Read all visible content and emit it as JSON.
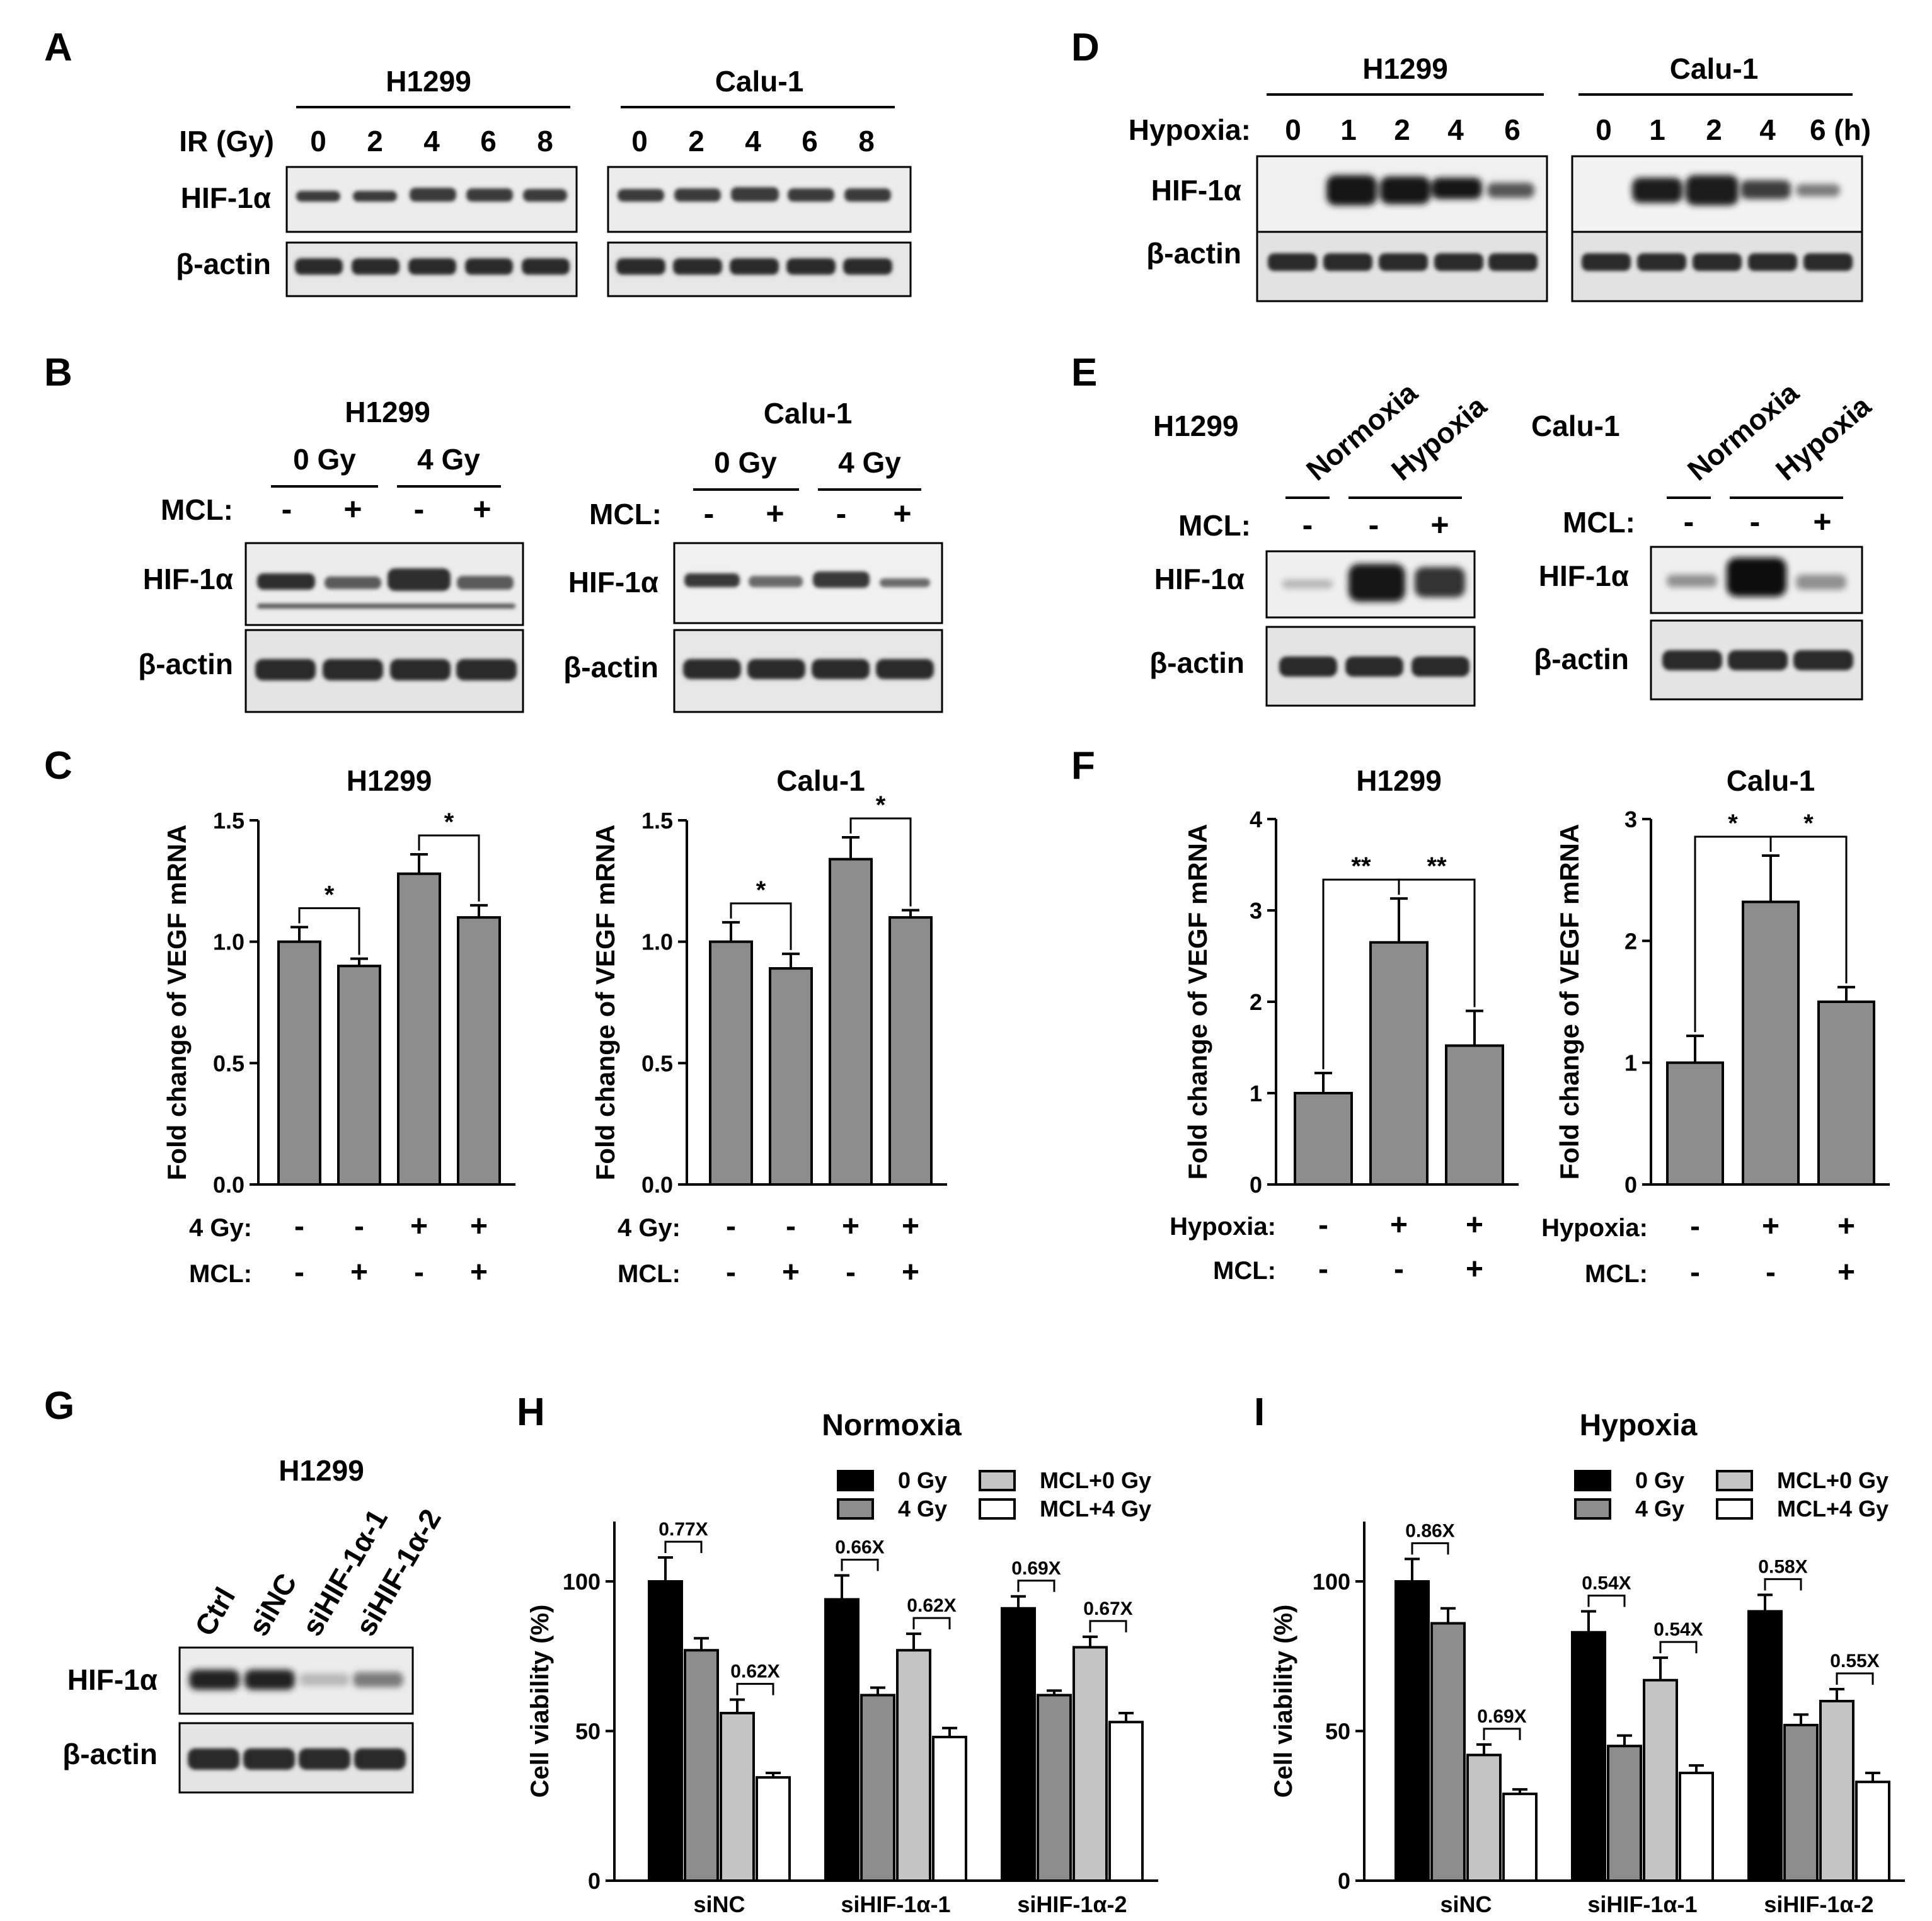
{
  "panel_letters": [
    "A",
    "B",
    "C",
    "D",
    "E",
    "F",
    "G",
    "H",
    "I"
  ],
  "blot_rows": {
    "hif": "HIF-1α",
    "actin": "β-actin"
  },
  "panelA": {
    "header_label": "IR (Gy)",
    "groups": [
      {
        "title": "H1299",
        "lanes": [
          "0",
          "2",
          "4",
          "6",
          "8"
        ]
      },
      {
        "title": "Calu-1",
        "lanes": [
          "0",
          "2",
          "4",
          "6",
          "8"
        ]
      }
    ]
  },
  "panelB": {
    "mcl_label": "MCL:",
    "groups": [
      {
        "title": "H1299",
        "doses": [
          "0 Gy",
          "4 Gy"
        ],
        "mcl": [
          "-",
          "+",
          "-",
          "+"
        ]
      },
      {
        "title": "Calu-1",
        "doses": [
          "0 Gy",
          "4 Gy"
        ],
        "mcl": [
          "-",
          "+",
          "-",
          "+"
        ]
      }
    ]
  },
  "panelD": {
    "header_label": "Hypoxia:",
    "groups": [
      {
        "title": "H1299",
        "lanes": [
          "0",
          "1",
          "2",
          "4",
          "6"
        ]
      },
      {
        "title": "Calu-1",
        "lanes": [
          "0",
          "1",
          "2",
          "4",
          "6 (h)"
        ]
      }
    ]
  },
  "panelE": {
    "mcl_label": "MCL:",
    "groups": [
      {
        "title": "H1299",
        "conditions": [
          "Normoxia",
          "Hypoxia"
        ],
        "mcl": [
          "-",
          "-",
          "+"
        ]
      },
      {
        "title": "Calu-1",
        "conditions": [
          "Normoxia",
          "Hypoxia"
        ],
        "mcl": [
          "-",
          "-",
          "+"
        ]
      }
    ]
  },
  "panelG": {
    "title": "H1299",
    "lanes": [
      "Ctrl",
      "siNC",
      "siHIF-1α-1",
      "siHIF-1α-2"
    ]
  },
  "chart_data": [
    {
      "id": "C1",
      "type": "bar",
      "title": "H1299",
      "ylabel": "Fold change of VEGF mRNA",
      "ylim": [
        0,
        1.5
      ],
      "yticks": [
        "0.0",
        "0.5",
        "1.0",
        "1.5"
      ],
      "values": [
        1.0,
        0.9,
        1.28,
        1.1
      ],
      "errors": [
        0.06,
        0.03,
        0.08,
        0.05
      ],
      "conditions": [
        {
          "label": "4 Gy:",
          "signs": [
            "-",
            "-",
            "+",
            "+"
          ]
        },
        {
          "label": "MCL:",
          "signs": [
            "-",
            "+",
            "-",
            "+"
          ]
        }
      ],
      "sig": [
        {
          "from": 0,
          "to": 1,
          "label": "*"
        },
        {
          "from": 2,
          "to": 3,
          "label": "*"
        }
      ]
    },
    {
      "id": "C2",
      "type": "bar",
      "title": "Calu-1",
      "ylabel": "Fold change of VEGF mRNA",
      "ylim": [
        0,
        1.5
      ],
      "yticks": [
        "0.0",
        "0.5",
        "1.0",
        "1.5"
      ],
      "values": [
        1.0,
        0.89,
        1.34,
        1.1
      ],
      "errors": [
        0.08,
        0.06,
        0.09,
        0.03
      ],
      "conditions": [
        {
          "label": "4 Gy:",
          "signs": [
            "-",
            "-",
            "+",
            "+"
          ]
        },
        {
          "label": "MCL:",
          "signs": [
            "-",
            "+",
            "-",
            "+"
          ]
        }
      ],
      "sig": [
        {
          "from": 0,
          "to": 1,
          "label": "*"
        },
        {
          "from": 2,
          "to": 3,
          "label": "*"
        }
      ]
    },
    {
      "id": "F1",
      "type": "bar",
      "title": "H1299",
      "ylabel": "Fold change of VEGF mRNA",
      "ylim": [
        0,
        4
      ],
      "yticks": [
        "0",
        "1",
        "2",
        "3",
        "4"
      ],
      "values": [
        1.0,
        2.65,
        1.52
      ],
      "errors": [
        0.22,
        0.48,
        0.38
      ],
      "conditions": [
        {
          "label": "Hypoxia:",
          "signs": [
            "-",
            "+",
            "+"
          ]
        },
        {
          "label": "MCL:",
          "signs": [
            "-",
            "-",
            "+"
          ]
        }
      ],
      "sig": [
        {
          "from": 0,
          "to": 1,
          "label": "**"
        },
        {
          "from": 1,
          "to": 2,
          "label": "**"
        }
      ]
    },
    {
      "id": "F2",
      "type": "bar",
      "title": "Calu-1",
      "ylabel": "Fold change of VEGF mRNA",
      "ylim": [
        0,
        3
      ],
      "yticks": [
        "0",
        "1",
        "2",
        "3"
      ],
      "values": [
        1.0,
        2.32,
        1.5
      ],
      "errors": [
        0.22,
        0.38,
        0.12
      ],
      "conditions": [
        {
          "label": "Hypoxia:",
          "signs": [
            "-",
            "+",
            "+"
          ]
        },
        {
          "label": "MCL:",
          "signs": [
            "-",
            "-",
            "+"
          ]
        }
      ],
      "sig": [
        {
          "from": 0,
          "to": 1,
          "label": "*"
        },
        {
          "from": 1,
          "to": 2,
          "label": "*"
        }
      ]
    },
    {
      "id": "H",
      "type": "bar",
      "title": "Normoxia",
      "ylabel": "Cell viability (%)",
      "ylim": [
        0,
        120
      ],
      "yticks": [
        "0",
        "50",
        "100"
      ],
      "ytick_values": [
        0,
        50,
        100
      ],
      "categories": [
        "siNC",
        "siHIF-1α-1",
        "siHIF-1α-2"
      ],
      "series": [
        {
          "name": "0 Gy",
          "color": "#000000",
          "values": [
            100,
            94,
            91
          ],
          "errors": [
            8,
            8,
            4
          ]
        },
        {
          "name": "4 Gy",
          "color": "#8c8c8c",
          "values": [
            77,
            62,
            62
          ],
          "errors": [
            4,
            2.5,
            1.5
          ]
        },
        {
          "name": "MCL+0 Gy",
          "color": "#c4c4c4",
          "values": [
            56,
            77,
            78
          ],
          "errors": [
            4.5,
            5.5,
            3.5
          ]
        },
        {
          "name": "MCL+4 Gy",
          "color": "#ffffff",
          "values": [
            34.5,
            48,
            53
          ],
          "errors": [
            1.5,
            3,
            3
          ]
        }
      ],
      "annotations": [
        {
          "cat": 0,
          "pair": [
            0,
            1
          ],
          "label": "0.77X"
        },
        {
          "cat": 0,
          "pair": [
            2,
            3
          ],
          "label": "0.62X"
        },
        {
          "cat": 1,
          "pair": [
            0,
            1
          ],
          "label": "0.66X"
        },
        {
          "cat": 1,
          "pair": [
            2,
            3
          ],
          "label": "0.62X"
        },
        {
          "cat": 2,
          "pair": [
            0,
            1
          ],
          "label": "0.69X"
        },
        {
          "cat": 2,
          "pair": [
            2,
            3
          ],
          "label": "0.67X"
        }
      ]
    },
    {
      "id": "I",
      "type": "bar",
      "title": "Hypoxia",
      "ylabel": "Cell viability (%)",
      "ylim": [
        0,
        120
      ],
      "yticks": [
        "0",
        "50",
        "100"
      ],
      "ytick_values": [
        0,
        50,
        100
      ],
      "categories": [
        "siNC",
        "siHIF-1α-1",
        "siHIF-1α-2"
      ],
      "series": [
        {
          "name": "0 Gy",
          "color": "#000000",
          "values": [
            100,
            83,
            90
          ],
          "errors": [
            7.5,
            7,
            5.5
          ]
        },
        {
          "name": "4 Gy",
          "color": "#8c8c8c",
          "values": [
            86,
            45,
            52
          ],
          "errors": [
            5,
            3.5,
            3.5
          ]
        },
        {
          "name": "MCL+0 Gy",
          "color": "#c4c4c4",
          "values": [
            42,
            67,
            60
          ],
          "errors": [
            3.5,
            7.5,
            4
          ]
        },
        {
          "name": "MCL+4 Gy",
          "color": "#ffffff",
          "values": [
            29,
            36,
            33
          ],
          "errors": [
            1.5,
            2.5,
            3
          ]
        }
      ],
      "annotations": [
        {
          "cat": 0,
          "pair": [
            0,
            1
          ],
          "label": "0.86X"
        },
        {
          "cat": 0,
          "pair": [
            2,
            3
          ],
          "label": "0.69X"
        },
        {
          "cat": 1,
          "pair": [
            0,
            1
          ],
          "label": "0.54X"
        },
        {
          "cat": 1,
          "pair": [
            2,
            3
          ],
          "label": "0.54X"
        },
        {
          "cat": 2,
          "pair": [
            0,
            1
          ],
          "label": "0.58X"
        },
        {
          "cat": 2,
          "pair": [
            2,
            3
          ],
          "label": "0.55X"
        }
      ]
    }
  ],
  "colors": {
    "bar_gray": "#8c8c8c",
    "blot_bg": "#ececec",
    "band": "#2e2e2e",
    "axis": "#000000"
  }
}
